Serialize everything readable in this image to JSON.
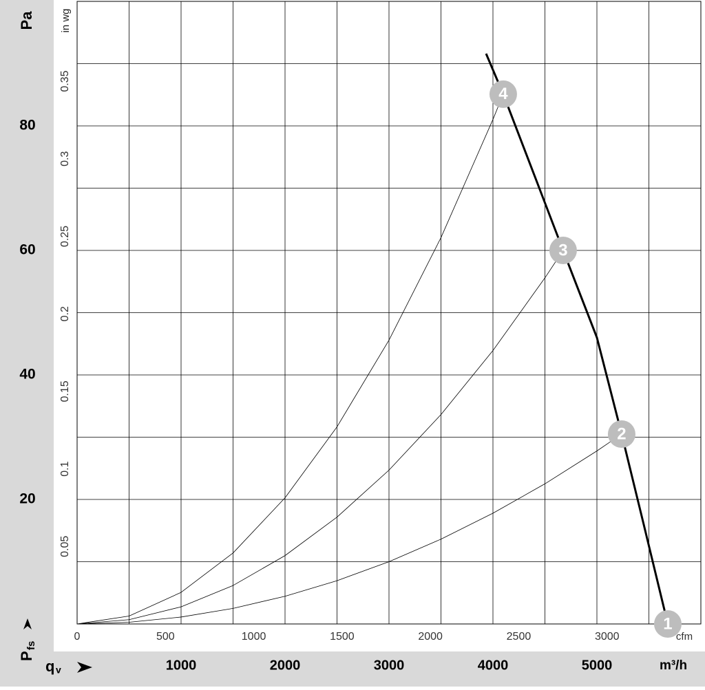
{
  "chart_data": {
    "type": "line",
    "y_label": "Pa",
    "y2_label": "in wg",
    "y_axis_symbol": "P",
    "y_axis_symbol_sub": "fs",
    "x_axis_symbol": "q",
    "x_axis_symbol_sub": "v",
    "x_label": "m³/h",
    "x2_label": "cfm",
    "xlim": [
      0,
      6000
    ],
    "xticks": [
      1000,
      2000,
      3000,
      4000,
      5000
    ],
    "xgrid": [
      500,
      1000,
      1500,
      2000,
      2500,
      3000,
      3500,
      4000,
      4500,
      5000,
      5500
    ],
    "ylim": [
      0,
      100
    ],
    "yticks": [
      20,
      40,
      60,
      80
    ],
    "ygrid": [
      10,
      20,
      30,
      40,
      50,
      60,
      70,
      80,
      90
    ],
    "x2lim": [
      0,
      3531
    ],
    "x2ticks": [
      0,
      500,
      1000,
      1500,
      2000,
      2500,
      3000
    ],
    "y2lim": [
      0,
      0.4015
    ],
    "y2ticks": [
      0.05,
      0.1,
      0.15,
      0.2,
      0.25,
      0.3,
      0.35
    ],
    "grid": true,
    "series": [
      {
        "color": "#000000",
        "width": 3,
        "x": [
          3934,
          4099,
          4400,
          4675,
          5000,
          5238,
          5450,
          5682
        ],
        "values": [
          91.6,
          85.1,
          72,
          60,
          46,
          30.5,
          16,
          0
        ]
      },
      {
        "color": "#000000",
        "width": 0.8,
        "x": [
          0,
          500,
          1000,
          1500,
          2000,
          2500,
          3000,
          3500,
          4000,
          4099
        ],
        "values": [
          0,
          1.27,
          5.07,
          11.4,
          20.26,
          31.66,
          45.59,
          62.05,
          81.04,
          85.1
        ]
      },
      {
        "color": "#000000",
        "width": 0.8,
        "x": [
          0,
          500,
          1000,
          1500,
          2000,
          2500,
          3000,
          3500,
          4000,
          4500,
          4675
        ],
        "values": [
          0,
          0.69,
          2.75,
          6.18,
          10.98,
          17.16,
          24.71,
          33.63,
          43.92,
          55.59,
          60
        ]
      },
      {
        "color": "#000000",
        "width": 0.8,
        "x": [
          0,
          500,
          1000,
          1500,
          2000,
          2500,
          3000,
          3500,
          4000,
          4500,
          5000,
          5238
        ],
        "values": [
          0,
          0.28,
          1.11,
          2.5,
          4.45,
          6.95,
          10,
          13.62,
          17.79,
          22.51,
          27.79,
          30.5
        ]
      }
    ],
    "markers": [
      {
        "label": "1",
        "x": 5682,
        "y": 0
      },
      {
        "label": "2",
        "x": 5238,
        "y": 30.5
      },
      {
        "label": "3",
        "x": 4675,
        "y": 60
      },
      {
        "label": "4",
        "x": 4099,
        "y": 85.1
      }
    ],
    "marker_color": "#bdbdbd"
  }
}
